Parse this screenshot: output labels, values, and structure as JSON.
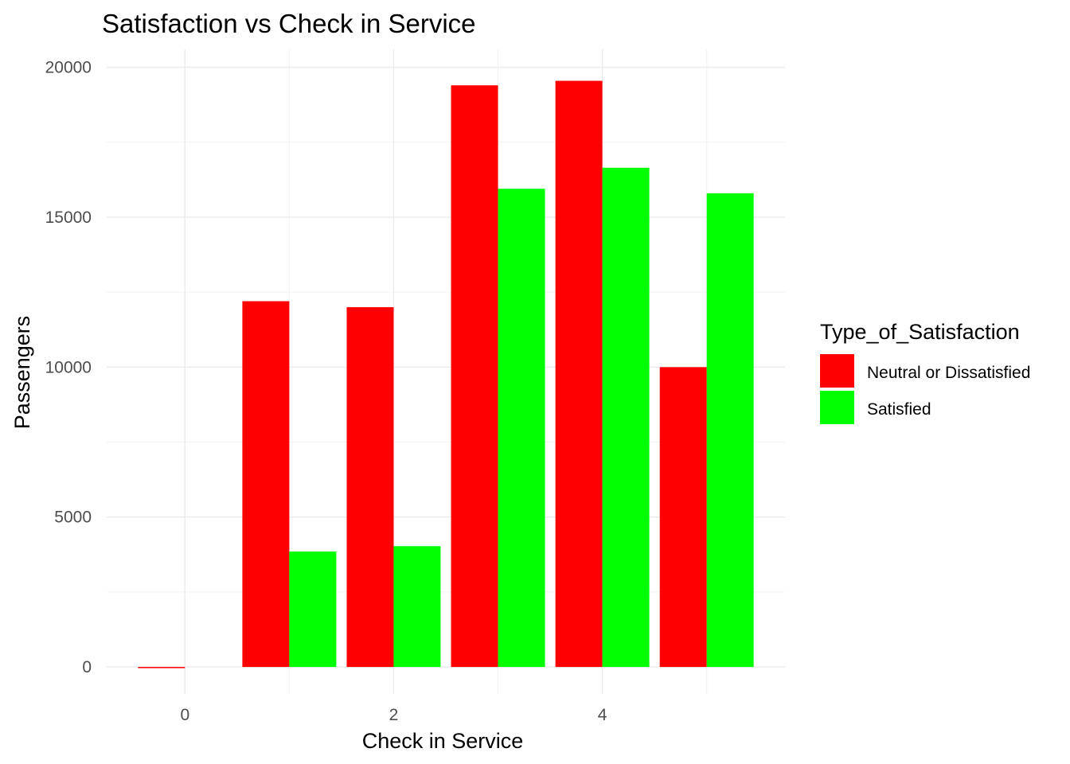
{
  "chart_data": {
    "type": "bar",
    "title": "Satisfaction vs Check in Service",
    "xlabel": "Check in Service",
    "ylabel": "Passengers",
    "categories": [
      0,
      1,
      2,
      3,
      4,
      5
    ],
    "x_ticks": [
      0,
      2,
      4
    ],
    "y_ticks": [
      0,
      5000,
      10000,
      15000,
      20000
    ],
    "xlim": [
      -0.75,
      5.75
    ],
    "ylim": [
      -900,
      20600
    ],
    "grid": true,
    "legend": {
      "title": "Type_of_Satisfaction",
      "position": "right"
    },
    "series": [
      {
        "name": "Neutral or Dissatisfied",
        "color": "#FF0000",
        "values": [
          1,
          12200,
          12000,
          19400,
          19550,
          10000
        ]
      },
      {
        "name": "Satisfied",
        "color": "#00FF00",
        "values": [
          0,
          3850,
          4030,
          15950,
          16650,
          15800
        ]
      }
    ]
  }
}
